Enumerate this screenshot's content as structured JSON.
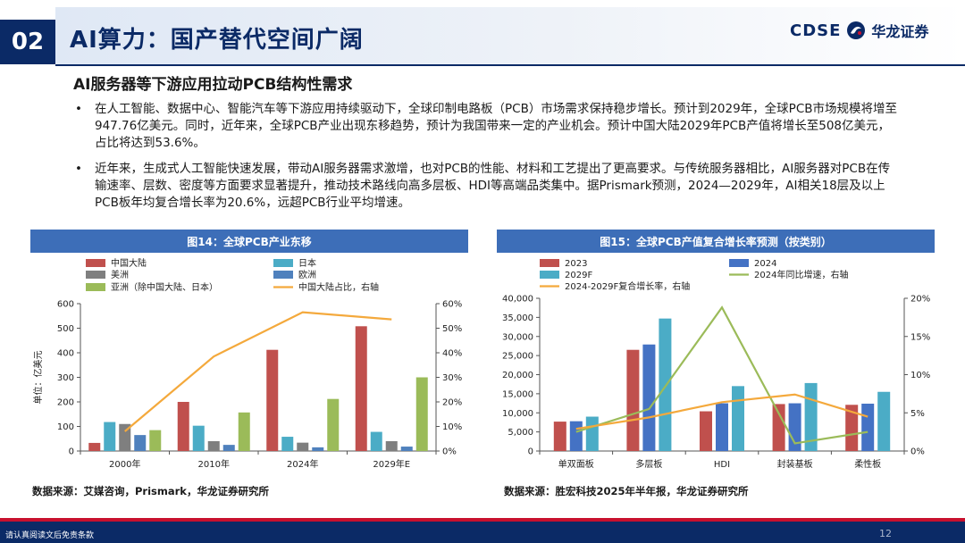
{
  "header": {
    "section_number": "02",
    "title": "AI算力：国产替代空间广阔",
    "logo_en": "CDSE",
    "logo_cn": "华龙证券"
  },
  "subtitle": "AI服务器等下游应用拉动PCB结构性需求",
  "bullets": [
    "在人工智能、数据中心、智能汽车等下游应用持续驱动下，全球印制电路板（PCB）市场需求保持稳步增长。预计到2029年，全球PCB市场规模将增至947.76亿美元。同时，近年来，全球PCB产业出现东移趋势，预计为我国带来一定的产业机会。预计中国大陆2029年PCB产值将增长至508亿美元，占比将达到53.6%。",
    "近年来，生成式人工智能快速发展，带动AI服务器需求激增，也对PCB的性能、材料和工艺提出了更高要求。与传统服务器相比，AI服务器对PCB在传输速率、层数、密度等方面要求显著提升，推动技术路线向高多层板、HDI等高端品类集中。据Prismark预测，2024—2029年，AI相关18层及以上PCB板年均复合增长率为20.6%，远超PCB行业平均增速。"
  ],
  "figure14": {
    "caption": "图14：全球PCB产业东移",
    "source": "数据来源：艾媒咨询，Prismark，华龙证券研究所"
  },
  "figure15": {
    "caption": "图15：全球PCB产值复合增长率预测（按类别）",
    "source": "数据来源：胜宏科技2025年半年报，华龙证券研究所"
  },
  "footer": {
    "disclaimer": "请认真阅读文后免责条款",
    "page_number": "12"
  },
  "chart_data": [
    {
      "type": "bar",
      "categories": [
        "2000年",
        "2010年",
        "2024年",
        "2029年E"
      ],
      "series": [
        {
          "name": "中国大陆",
          "color": "#c0504d",
          "values": [
            33,
            200,
            412,
            508
          ]
        },
        {
          "name": "日本",
          "color": "#4bacc6",
          "values": [
            118,
            103,
            58,
            78
          ]
        },
        {
          "name": "美洲",
          "color": "#7f7f7f",
          "values": [
            110,
            40,
            34,
            40
          ]
        },
        {
          "name": "欧洲",
          "color": "#4f81bd",
          "values": [
            65,
            25,
            15,
            18
          ]
        },
        {
          "name": "亚洲（除中国大陆、日本）",
          "color": "#9bbb59",
          "values": [
            85,
            157,
            212,
            300
          ]
        }
      ],
      "line_series": {
        "name": "中国大陆占比，右轴",
        "color": "#f4a93c",
        "values": [
          8,
          38.5,
          56.5,
          53.6
        ]
      },
      "ylabel": "单位：亿美元",
      "ylim": [
        0,
        600
      ],
      "yticks": [
        "0",
        "100",
        "200",
        "300",
        "400",
        "500",
        "600"
      ],
      "y2lim": [
        0,
        60
      ],
      "y2ticks": [
        "0%",
        "10%",
        "20%",
        "30%",
        "40%",
        "50%",
        "60%"
      ],
      "legend": "top"
    },
    {
      "type": "bar",
      "categories": [
        "单双面板",
        "多层板",
        "HDI",
        "封装基板",
        "柔性板"
      ],
      "series": [
        {
          "name": "2023",
          "color": "#c0504d",
          "values": [
            7700,
            26500,
            10400,
            12300,
            12100
          ]
        },
        {
          "name": "2024",
          "color": "#4472c4",
          "values": [
            7800,
            27900,
            12500,
            12500,
            12400
          ]
        },
        {
          "name": "2029F",
          "color": "#4bacc6",
          "values": [
            9000,
            34700,
            17000,
            17800,
            15500
          ]
        }
      ],
      "line_series": [
        {
          "name": "2024年同比增速，右轴",
          "color": "#9bbb59",
          "values": [
            2.5,
            5.5,
            18.8,
            1.0,
            2.5
          ]
        },
        {
          "name": "2024-2029F复合增长率，右轴",
          "color": "#f4a93c",
          "values": [
            2.9,
            4.4,
            6.4,
            7.4,
            4.5
          ]
        }
      ],
      "ylim": [
        0,
        40000
      ],
      "yticks": [
        "0",
        "5,000",
        "10,000",
        "15,000",
        "20,000",
        "25,000",
        "30,000",
        "35,000",
        "40,000"
      ],
      "y2lim": [
        0,
        20
      ],
      "y2ticks": [
        "0%",
        "5%",
        "10%",
        "15%",
        "20%"
      ],
      "legend": "top"
    }
  ]
}
